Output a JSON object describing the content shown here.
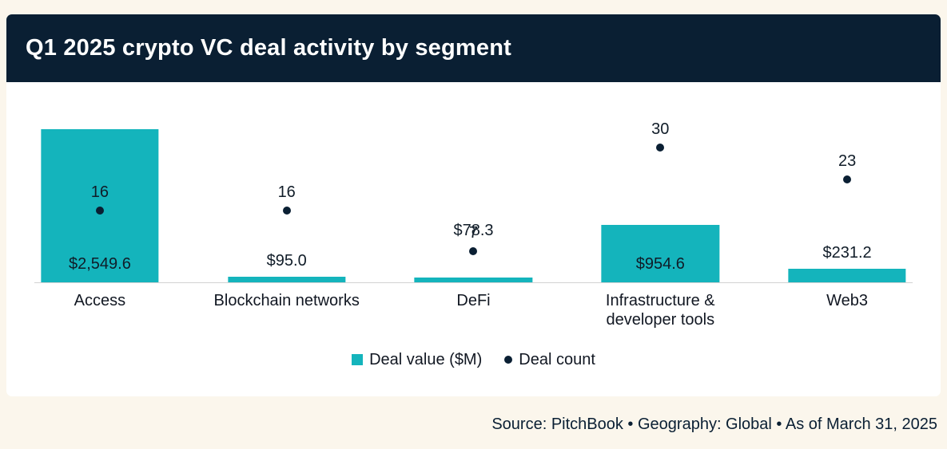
{
  "title": "Q1 2025 crypto VC deal activity by segment",
  "chart_data": {
    "type": "bar",
    "title": "Q1 2025 crypto VC deal activity by segment",
    "categories": [
      "Access",
      "Blockchain networks",
      "DeFi",
      "Infrastructure & developer tools",
      "Web3"
    ],
    "series": [
      {
        "name": "Deal value ($M)",
        "type": "bar",
        "values": [
          2549.6,
          95.0,
          78.3,
          954.6,
          231.2
        ],
        "labels": [
          "$2,549.6",
          "$95.0",
          "$78.3",
          "$954.6",
          "$231.2"
        ],
        "color": "#14b4bc"
      },
      {
        "name": "Deal count",
        "type": "point",
        "values": [
          16,
          16,
          7,
          30,
          23
        ],
        "labels": [
          "16",
          "16",
          "7",
          "30",
          "23"
        ],
        "color": "#0a1f33"
      }
    ],
    "value_axis_max": 2549.6,
    "count_axis_max": 30,
    "grid": false,
    "legend_position": "bottom"
  },
  "legend": {
    "value_label": "Deal value ($M)",
    "count_label": "Deal count"
  },
  "footer": {
    "text": "Source: PitchBook  •  Geography: Global  •  As of March 31, 2025"
  },
  "colors": {
    "bar": "#14b4bc",
    "dot": "#0a1f33",
    "header_bg": "#0a1f33",
    "page_bg": "#fbf6ec",
    "card_bg": "#ffffff"
  }
}
